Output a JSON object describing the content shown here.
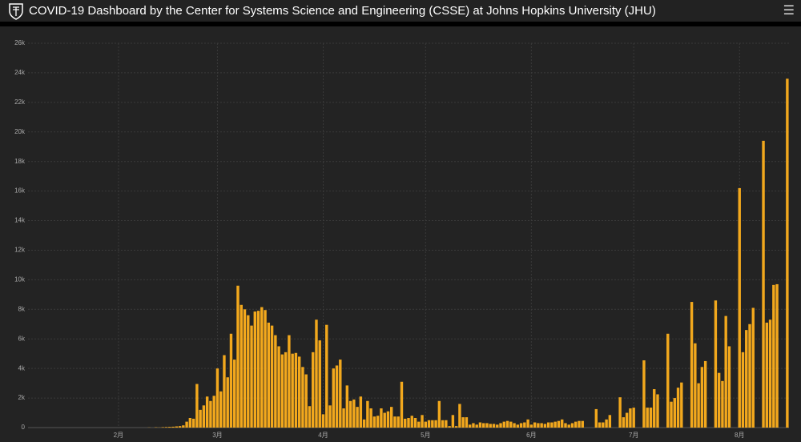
{
  "header": {
    "title": "COVID-19 Dashboard by the Center for Systems Science and Engineering (CSSE) at Johns Hopkins University (JHU)"
  },
  "chart_data": {
    "type": "bar",
    "color": "#f2a81d",
    "grid": true,
    "ylim": [
      0,
      26000
    ],
    "yticks": [
      0,
      {
        "value": 2000,
        "label": "2k"
      },
      {
        "value": 4000,
        "label": "4k"
      },
      {
        "value": 6000,
        "label": "6k"
      },
      {
        "value": 8000,
        "label": "8k"
      },
      {
        "value": 10000,
        "label": "10k"
      },
      {
        "value": 12000,
        "label": "12k"
      },
      {
        "value": 14000,
        "label": "14k"
      },
      {
        "value": 16000,
        "label": "16k"
      },
      {
        "value": 18000,
        "label": "18k"
      },
      {
        "value": 20000,
        "label": "20k"
      },
      {
        "value": 22000,
        "label": "22k"
      },
      {
        "value": 24000,
        "label": "24k"
      },
      {
        "value": 26000,
        "label": "26k"
      }
    ],
    "categories": [
      null,
      null,
      null,
      null,
      null,
      null,
      null,
      null,
      null,
      null,
      null,
      null,
      null,
      null,
      null,
      null,
      null,
      null,
      null,
      null,
      null,
      null,
      null,
      null,
      null,
      null,
      "2月",
      null,
      null,
      null,
      null,
      null,
      null,
      null,
      null,
      null,
      null,
      null,
      null,
      null,
      null,
      null,
      null,
      null,
      null,
      null,
      null,
      null,
      null,
      null,
      null,
      null,
      null,
      null,
      null,
      "3月",
      null,
      null,
      null,
      null,
      null,
      null,
      null,
      null,
      null,
      null,
      null,
      null,
      null,
      null,
      null,
      null,
      null,
      null,
      null,
      null,
      null,
      null,
      null,
      null,
      null,
      null,
      null,
      null,
      null,
      null,
      "4月",
      null,
      null,
      null,
      null,
      null,
      null,
      null,
      null,
      null,
      null,
      null,
      null,
      null,
      null,
      null,
      null,
      null,
      null,
      null,
      null,
      null,
      null,
      null,
      null,
      null,
      null,
      null,
      null,
      null,
      "5月",
      null,
      null,
      null,
      null,
      null,
      null,
      null,
      null,
      null,
      null,
      null,
      null,
      null,
      null,
      null,
      null,
      null,
      null,
      null,
      null,
      null,
      null,
      null,
      null,
      null,
      null,
      null,
      null,
      null,
      null,
      "6月",
      null,
      null,
      null,
      null,
      null,
      null,
      null,
      null,
      null,
      null,
      null,
      null,
      null,
      null,
      null,
      null,
      null,
      null,
      null,
      null,
      null,
      null,
      null,
      null,
      null,
      null,
      null,
      null,
      null,
      "7月",
      null,
      null,
      null,
      null,
      null,
      null,
      null,
      null,
      null,
      null,
      null,
      null,
      null,
      null,
      null,
      null,
      null,
      null,
      null,
      null,
      null,
      null,
      null,
      null,
      null,
      null,
      null,
      null,
      null,
      null,
      "8月",
      null,
      null,
      null,
      null,
      null,
      null,
      null,
      null,
      null,
      null,
      null,
      null,
      null,
      null
    ],
    "values": [
      0,
      0,
      0,
      0,
      0,
      0,
      0,
      0,
      0,
      0,
      0,
      0,
      0,
      0,
      0,
      0,
      0,
      0,
      0,
      0,
      0,
      0,
      0,
      0,
      0,
      0,
      0,
      0,
      0,
      0,
      0,
      0,
      0,
      0,
      0,
      10,
      0,
      20,
      10,
      30,
      40,
      50,
      60,
      80,
      100,
      150,
      400,
      650,
      600,
      2950,
      1200,
      1500,
      2100,
      1800,
      2150,
      4000,
      2450,
      4900,
      3400,
      6350,
      4600,
      9600,
      8300,
      8000,
      7600,
      6900,
      7850,
      7900,
      8150,
      7950,
      7100,
      6900,
      6250,
      5500,
      4950,
      5100,
      6250,
      5000,
      5050,
      4800,
      4100,
      3600,
      1450,
      5100,
      7300,
      5900,
      900,
      6950,
      1500,
      4000,
      4200,
      4600,
      1300,
      2850,
      1800,
      1900,
      1400,
      2100,
      550,
      1800,
      1300,
      750,
      800,
      1300,
      1000,
      1100,
      1400,
      750,
      750,
      3100,
      600,
      650,
      800,
      650,
      400,
      850,
      400,
      500,
      500,
      500,
      1800,
      500,
      500,
      100,
      850,
      100,
      1600,
      700,
      700,
      200,
      300,
      200,
      350,
      300,
      300,
      250,
      250,
      200,
      300,
      400,
      450,
      400,
      300,
      200,
      300,
      350,
      550,
      200,
      350,
      300,
      300,
      250,
      350,
      350,
      400,
      450,
      550,
      300,
      200,
      300,
      400,
      450,
      450,
      0,
      0,
      0,
      1250,
      350,
      350,
      550,
      850,
      0,
      0,
      2050,
      700,
      1000,
      1300,
      1350,
      0,
      0,
      4550,
      1350,
      1350,
      2600,
      2250,
      0,
      0,
      6350,
      1750,
      2000,
      2700,
      3050,
      0,
      0,
      8500,
      5700,
      3000,
      4100,
      4500,
      0,
      0,
      8600,
      3700,
      3150,
      7550,
      5500,
      0,
      0,
      16200,
      5100,
      6600,
      7000,
      8100,
      0,
      0,
      19400,
      7100,
      7300,
      9650,
      9700,
      0,
      0,
      23600
    ]
  }
}
